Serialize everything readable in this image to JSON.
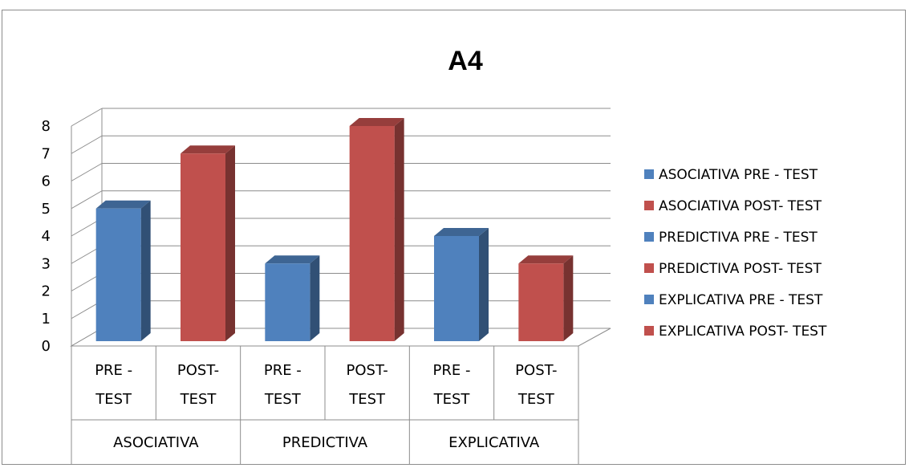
{
  "chart_data": {
    "type": "bar",
    "title": "A4",
    "ylim": [
      0,
      8
    ],
    "yticks": [
      "0",
      "1",
      "2",
      "3",
      "4",
      "5",
      "6",
      "7",
      "8"
    ],
    "grid": true,
    "legend_position": "right",
    "groups": [
      "ASOCIATIVA",
      "PREDICTIVA",
      "EXPLICATIVA"
    ],
    "categories": [
      {
        "line1": "PRE -",
        "line2": "TEST"
      },
      {
        "line1": "POST-",
        "line2": "TEST"
      },
      {
        "line1": "PRE -",
        "line2": "TEST"
      },
      {
        "line1": "POST-",
        "line2": "TEST"
      },
      {
        "line1": "PRE -",
        "line2": "TEST"
      },
      {
        "line1": "POST-",
        "line2": "TEST"
      }
    ],
    "series": [
      {
        "name": "ASOCIATIVA PRE - TEST",
        "color": "#4f81bd",
        "category_index": 0,
        "value": 5
      },
      {
        "name": "ASOCIATIVA POST- TEST",
        "color": "#c0504d",
        "category_index": 1,
        "value": 7
      },
      {
        "name": "PREDICTIVA PRE - TEST",
        "color": "#4f81bd",
        "category_index": 2,
        "value": 3
      },
      {
        "name": "PREDICTIVA POST- TEST",
        "color": "#c0504d",
        "category_index": 3,
        "value": 8
      },
      {
        "name": "EXPLICATIVA PRE - TEST",
        "color": "#4f81bd",
        "category_index": 4,
        "value": 4
      },
      {
        "name": "EXPLICATIVA POST- TEST",
        "color": "#c0504d",
        "category_index": 5,
        "value": 3
      }
    ]
  }
}
